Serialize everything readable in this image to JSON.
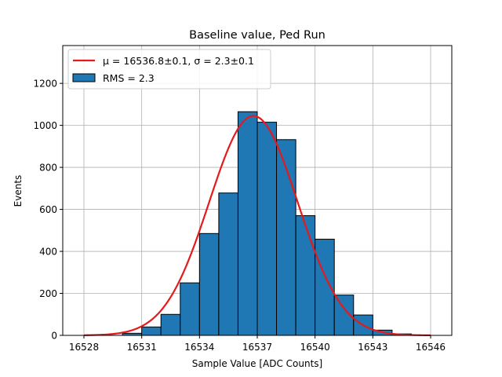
{
  "chart_data": {
    "type": "bar",
    "title": "Baseline value, Ped Run",
    "xlabel": "Sample Value [ADC Counts]",
    "ylabel": "Events",
    "xlim": [
      16526.9,
      16547.1
    ],
    "ylim": [
      0,
      1380
    ],
    "xticks": [
      16528,
      16531,
      16534,
      16537,
      16540,
      16543,
      16546
    ],
    "yticks": [
      0,
      200,
      400,
      600,
      800,
      1000,
      1200
    ],
    "grid": true,
    "legend_placement": "upper-left",
    "histogram": {
      "name": "RMS = 2.3",
      "color": "#1f77b4",
      "edgecolor": "#000000",
      "bin_edges": [
        16528,
        16529,
        16530,
        16531,
        16532,
        16533,
        16534,
        16535,
        16536,
        16537,
        16538,
        16539,
        16540,
        16541,
        16542,
        16543,
        16544,
        16545,
        16546
      ],
      "values": [
        0,
        0,
        10,
        40,
        100,
        250,
        485,
        678,
        1065,
        1015,
        932,
        570,
        458,
        192,
        97,
        25,
        7,
        0
      ]
    },
    "fit": {
      "name": "μ = 16536.8±0.1, σ = 2.3±0.1",
      "color": "#e41a1c",
      "mu": 16536.8,
      "sigma": 2.3,
      "amplitude": 1045,
      "x_range": [
        16528,
        16546
      ]
    }
  }
}
